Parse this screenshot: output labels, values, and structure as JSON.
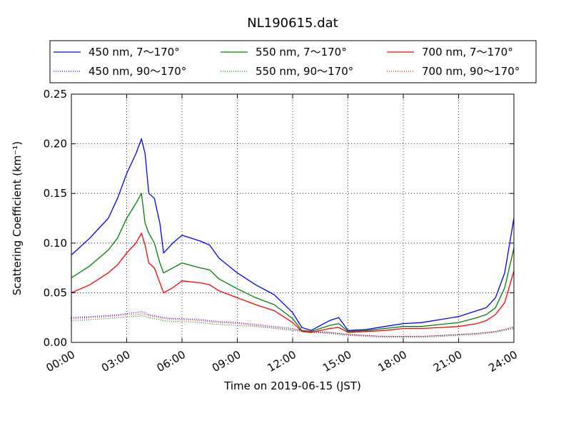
{
  "chart_data": {
    "type": "line",
    "title": "NL190615.dat",
    "xlabel": "Time on 2019-06-15 (JST)",
    "ylabel": "Scattering Coefficient (km⁻¹)",
    "xlim": [
      0,
      24
    ],
    "ylim": [
      0,
      0.25
    ],
    "grid": true,
    "legend_position": "top",
    "x_ticks": [
      {
        "value": 0,
        "label": "00:00"
      },
      {
        "value": 3,
        "label": "03:00"
      },
      {
        "value": 6,
        "label": "06:00"
      },
      {
        "value": 9,
        "label": "09:00"
      },
      {
        "value": 12,
        "label": "12:00"
      },
      {
        "value": 15,
        "label": "15:00"
      },
      {
        "value": 18,
        "label": "18:00"
      },
      {
        "value": 21,
        "label": "21:00"
      },
      {
        "value": 24,
        "label": "24:00"
      }
    ],
    "y_ticks": [
      {
        "value": 0,
        "label": "0.00"
      },
      {
        "value": 0.05,
        "label": "0.05"
      },
      {
        "value": 0.1,
        "label": "0.10"
      },
      {
        "value": 0.15,
        "label": "0.15"
      },
      {
        "value": 0.2,
        "label": "0.20"
      },
      {
        "value": 0.25,
        "label": "0.25"
      }
    ],
    "x": [
      0,
      1,
      2,
      2.5,
      3,
      3.5,
      3.8,
      4.0,
      4.2,
      4.5,
      4.8,
      5.0,
      5.5,
      6,
      7,
      7.5,
      8,
      9,
      10,
      11,
      12,
      12.5,
      13,
      14,
      14.5,
      15,
      16,
      17,
      18,
      19,
      20,
      21,
      22,
      22.5,
      23,
      23.5,
      24
    ],
    "series": [
      {
        "name": "450 nm, 7～170°",
        "color": "#0000ff",
        "style": "solid",
        "values": [
          0.088,
          0.105,
          0.125,
          0.145,
          0.17,
          0.19,
          0.205,
          0.19,
          0.15,
          0.145,
          0.12,
          0.09,
          0.1,
          0.108,
          0.102,
          0.098,
          0.085,
          0.07,
          0.058,
          0.048,
          0.03,
          0.015,
          0.012,
          0.022,
          0.025,
          0.012,
          0.013,
          0.016,
          0.019,
          0.02,
          0.023,
          0.026,
          0.032,
          0.035,
          0.045,
          0.07,
          0.125
        ]
      },
      {
        "name": "450 nm, 90～170°",
        "color": "#0000ff",
        "style": "dotted",
        "values": [
          0.025,
          0.026,
          0.027,
          0.028,
          0.029,
          0.03,
          0.031,
          0.03,
          0.028,
          0.027,
          0.026,
          0.025,
          0.024,
          0.024,
          0.023,
          0.022,
          0.021,
          0.02,
          0.018,
          0.016,
          0.014,
          0.012,
          0.011,
          0.01,
          0.009,
          0.008,
          0.007,
          0.006,
          0.006,
          0.006,
          0.007,
          0.008,
          0.009,
          0.01,
          0.011,
          0.013,
          0.016
        ]
      },
      {
        "name": "550 nm, 7～170°",
        "color": "#008000",
        "style": "solid",
        "values": [
          0.065,
          0.077,
          0.093,
          0.105,
          0.125,
          0.14,
          0.15,
          0.12,
          0.11,
          0.1,
          0.08,
          0.07,
          0.075,
          0.08,
          0.075,
          0.073,
          0.064,
          0.054,
          0.045,
          0.038,
          0.024,
          0.012,
          0.011,
          0.017,
          0.019,
          0.011,
          0.012,
          0.014,
          0.016,
          0.016,
          0.018,
          0.02,
          0.025,
          0.028,
          0.035,
          0.055,
          0.095
        ]
      },
      {
        "name": "550 nm, 90～170°",
        "color": "#008000",
        "style": "dotted",
        "values": [
          0.022,
          0.023,
          0.024,
          0.025,
          0.026,
          0.026,
          0.027,
          0.026,
          0.025,
          0.024,
          0.023,
          0.022,
          0.021,
          0.021,
          0.02,
          0.019,
          0.018,
          0.017,
          0.016,
          0.014,
          0.012,
          0.011,
          0.01,
          0.009,
          0.008,
          0.007,
          0.006,
          0.005,
          0.005,
          0.005,
          0.006,
          0.007,
          0.008,
          0.009,
          0.01,
          0.012,
          0.014
        ]
      },
      {
        "name": "700 nm, 7～170°",
        "color": "#ff0000",
        "style": "solid",
        "values": [
          0.05,
          0.058,
          0.07,
          0.078,
          0.09,
          0.1,
          0.11,
          0.098,
          0.08,
          0.075,
          0.06,
          0.05,
          0.055,
          0.062,
          0.06,
          0.058,
          0.052,
          0.045,
          0.038,
          0.032,
          0.02,
          0.011,
          0.01,
          0.014,
          0.015,
          0.01,
          0.011,
          0.012,
          0.014,
          0.014,
          0.015,
          0.016,
          0.019,
          0.022,
          0.028,
          0.04,
          0.072
        ]
      },
      {
        "name": "700 nm, 90～170°",
        "color": "#ff0000",
        "style": "dotted",
        "values": [
          0.024,
          0.025,
          0.026,
          0.027,
          0.028,
          0.028,
          0.029,
          0.028,
          0.027,
          0.026,
          0.025,
          0.024,
          0.023,
          0.023,
          0.022,
          0.021,
          0.02,
          0.019,
          0.017,
          0.015,
          0.013,
          0.012,
          0.011,
          0.01,
          0.009,
          0.008,
          0.007,
          0.006,
          0.006,
          0.006,
          0.007,
          0.008,
          0.009,
          0.01,
          0.011,
          0.013,
          0.015
        ]
      }
    ]
  }
}
